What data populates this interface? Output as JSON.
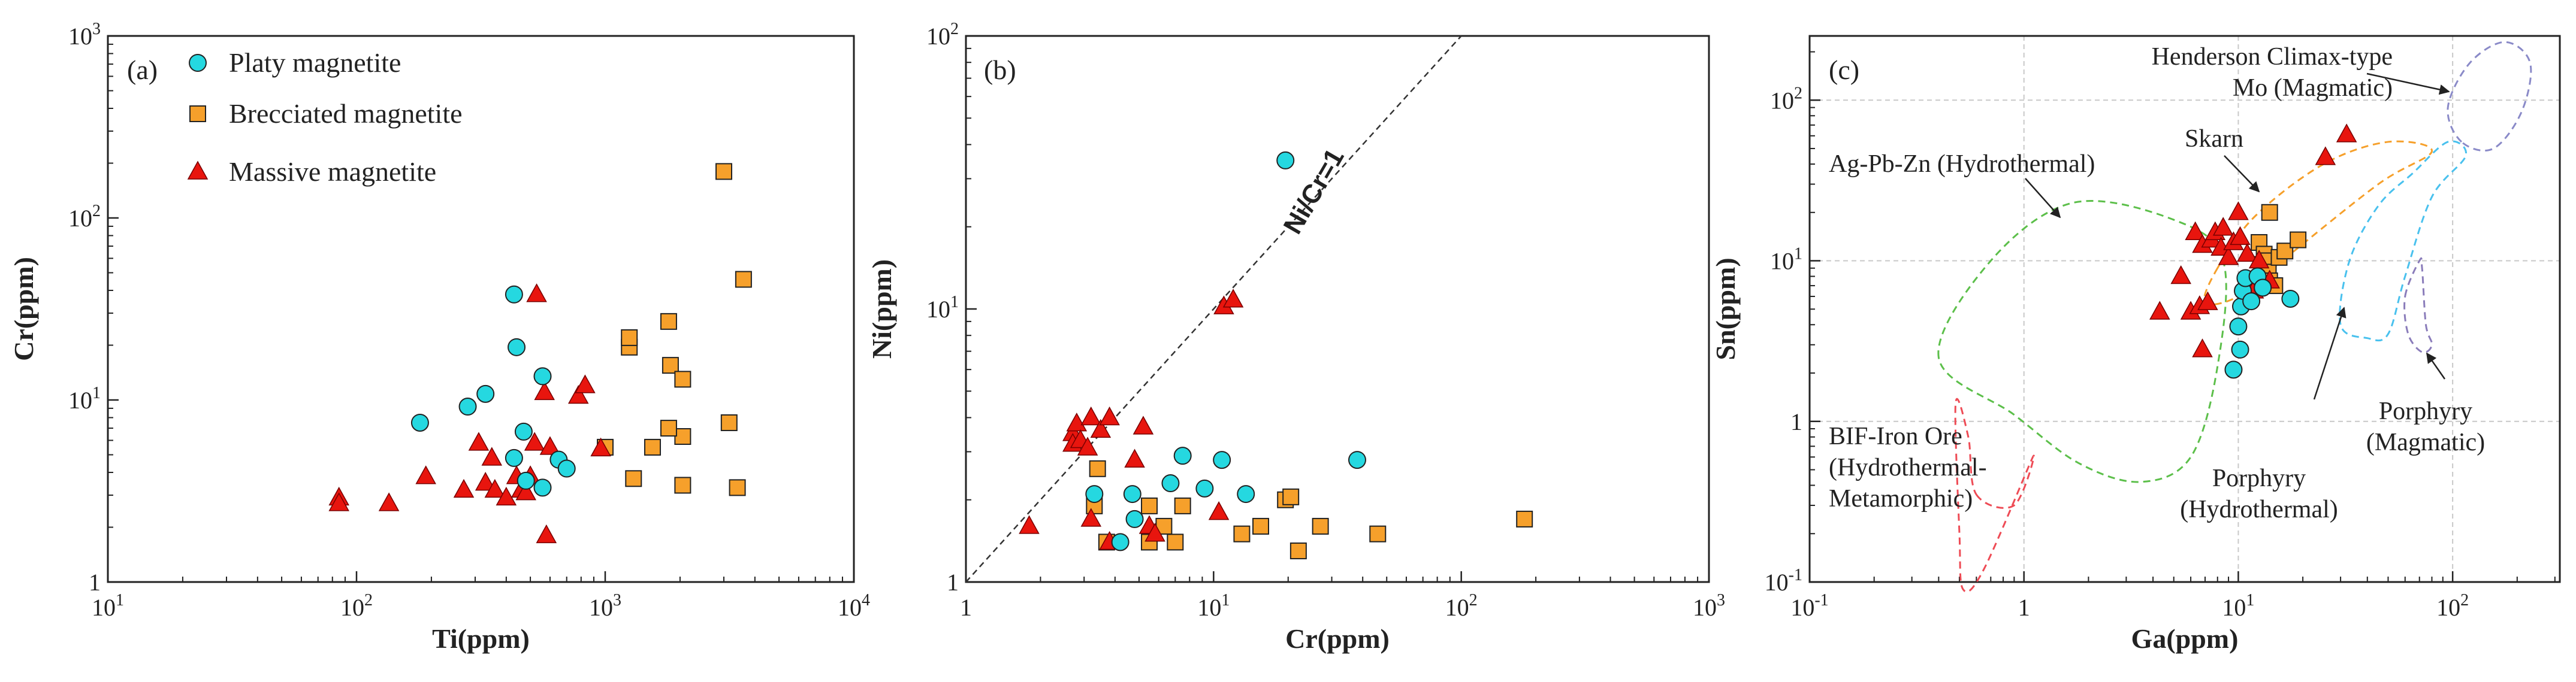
{
  "chart_data": [
    {
      "id": "a",
      "type": "scatter",
      "panel_label": "(a)",
      "xlabel": "Ti(ppm)",
      "ylabel": "Cr(ppm)",
      "xscale": "log",
      "yscale": "log",
      "xlim_exp": [
        1,
        4
      ],
      "ylim_exp": [
        0,
        3
      ],
      "legend_position": "top-left",
      "series": [
        {
          "name": "Platy magnetite",
          "marker": "circle",
          "color": "#25d8e0",
          "points": [
            [
              180,
              7.5
            ],
            [
              280,
              9.2
            ],
            [
              330,
              10.8
            ],
            [
              430,
              38
            ],
            [
              440,
              19.5
            ],
            [
              560,
              13.5
            ],
            [
              430,
              4.8
            ],
            [
              470,
              6.7
            ],
            [
              650,
              4.7
            ],
            [
              700,
              4.2
            ],
            [
              560,
              3.3
            ],
            [
              480,
              3.6
            ]
          ]
        },
        {
          "name": "Brecciated magnetite",
          "marker": "square",
          "color": "#f6a02b",
          "points": [
            [
              3000,
              180
            ],
            [
              3600,
              46
            ],
            [
              1250,
              19.5
            ],
            [
              1250,
              22
            ],
            [
              1800,
              27
            ],
            [
              1830,
              15.5
            ],
            [
              2050,
              13
            ],
            [
              1300,
              3.7
            ],
            [
              1550,
              5.5
            ],
            [
              2050,
              6.3
            ],
            [
              1800,
              7
            ],
            [
              1000,
              5.5
            ],
            [
              3150,
              7.5
            ],
            [
              3400,
              3.3
            ],
            [
              2050,
              3.4
            ]
          ]
        },
        {
          "name": "Massive magnetite",
          "marker": "triangle",
          "color": "#e8150e",
          "points": [
            [
              85,
              2.9
            ],
            [
              85,
              2.7
            ],
            [
              135,
              2.7
            ],
            [
              190,
              3.8
            ],
            [
              270,
              3.2
            ],
            [
              310,
              5.8
            ],
            [
              330,
              3.5
            ],
            [
              350,
              4.8
            ],
            [
              360,
              3.2
            ],
            [
              400,
              2.9
            ],
            [
              440,
              3.8
            ],
            [
              460,
              3.2
            ],
            [
              480,
              3.1
            ],
            [
              500,
              3.8
            ],
            [
              520,
              5.8
            ],
            [
              530,
              38
            ],
            [
              570,
              11
            ],
            [
              580,
              1.8
            ],
            [
              600,
              5.5
            ],
            [
              780,
              10.5
            ],
            [
              830,
              12
            ],
            [
              960,
              5.4
            ]
          ]
        }
      ]
    },
    {
      "id": "b",
      "type": "scatter",
      "panel_label": "(b)",
      "xlabel": "Cr(ppm)",
      "ylabel": "Ni(ppm)",
      "xscale": "log",
      "yscale": "log",
      "xlim_exp": [
        0,
        3
      ],
      "ylim_exp": [
        0,
        2
      ],
      "reference_line": {
        "label": "Ni/Cr=1",
        "style": "dashed",
        "slope": 1
      },
      "series": [
        {
          "name": "Platy magnetite",
          "marker": "circle",
          "color": "#25d8e0",
          "points": [
            [
              19.5,
              35
            ],
            [
              38,
              2.8
            ],
            [
              7.5,
              2.9
            ],
            [
              10.8,
              2.8
            ],
            [
              13.5,
              2.1
            ],
            [
              3.3,
              2.1
            ],
            [
              4.7,
              2.1
            ],
            [
              6.7,
              2.3
            ],
            [
              9.2,
              2.2
            ],
            [
              4.2,
              1.4
            ],
            [
              4.8,
              1.7
            ]
          ]
        },
        {
          "name": "Brecciated magnetite",
          "marker": "square",
          "color": "#f6a02b",
          "points": [
            [
              3.4,
              2.6
            ],
            [
              3.3,
              1.9
            ],
            [
              3.7,
              1.4
            ],
            [
              5.5,
              1.9
            ],
            [
              5.5,
              1.4
            ],
            [
              6.3,
              1.6
            ],
            [
              7.0,
              1.4
            ],
            [
              7.5,
              1.9
            ],
            [
              13.0,
              1.5
            ],
            [
              15.5,
              1.6
            ],
            [
              19.5,
              2.0
            ],
            [
              20.5,
              2.05
            ],
            [
              22.0,
              1.3
            ],
            [
              27.0,
              1.6
            ],
            [
              46.0,
              1.5
            ],
            [
              180.0,
              1.7
            ]
          ]
        },
        {
          "name": "Massive magnetite",
          "marker": "triangle",
          "color": "#e8150e",
          "points": [
            [
              1.8,
              1.6
            ],
            [
              2.7,
              3.5
            ],
            [
              2.7,
              3.2
            ],
            [
              2.8,
              3.8
            ],
            [
              2.9,
              3.3
            ],
            [
              3.1,
              3.1
            ],
            [
              3.2,
              4.0
            ],
            [
              3.5,
              3.6
            ],
            [
              3.8,
              4.0
            ],
            [
              3.2,
              1.7
            ],
            [
              3.8,
              1.4
            ],
            [
              4.8,
              2.8
            ],
            [
              5.2,
              3.7
            ],
            [
              5.5,
              1.6
            ],
            [
              5.8,
              1.5
            ],
            [
              10.5,
              1.8
            ],
            [
              11.0,
              10.2
            ],
            [
              12.0,
              10.8
            ]
          ]
        }
      ]
    },
    {
      "id": "c",
      "type": "scatter",
      "panel_label": "(c)",
      "xlabel": "Ga(ppm)",
      "ylabel": "Sn(ppm)",
      "xscale": "log",
      "yscale": "log",
      "xlim_exp": [
        -1,
        2.5
      ],
      "ylim_exp": [
        -1,
        2.4
      ],
      "grid": true,
      "series": [
        {
          "name": "Platy magnetite",
          "marker": "circle",
          "color": "#25d8e0",
          "points": [
            [
              9.5,
              2.1
            ],
            [
              10.2,
              2.8
            ],
            [
              10.0,
              3.9
            ],
            [
              10.3,
              5.2
            ],
            [
              10.5,
              6.5
            ],
            [
              10.8,
              7.8
            ],
            [
              11.5,
              5.6
            ],
            [
              12.3,
              8.0
            ],
            [
              13.0,
              6.8
            ],
            [
              17.5,
              5.8
            ]
          ]
        },
        {
          "name": "Brecciated magnetite",
          "marker": "square",
          "color": "#f6a02b",
          "points": [
            [
              12.5,
              13
            ],
            [
              13.0,
              9.5
            ],
            [
              13.2,
              11
            ],
            [
              13.5,
              10
            ],
            [
              13.8,
              8.5
            ],
            [
              14.0,
              7.5
            ],
            [
              14.0,
              20
            ],
            [
              14.8,
              7.0
            ],
            [
              15.5,
              10.5
            ],
            [
              16.5,
              11.5
            ],
            [
              19.0,
              13.5
            ]
          ]
        },
        {
          "name": "Massive magnetite",
          "marker": "triangle",
          "color": "#e8150e",
          "points": [
            [
              4.3,
              4.8
            ],
            [
              5.4,
              8.0
            ],
            [
              6.0,
              4.8
            ],
            [
              6.3,
              15.0
            ],
            [
              6.6,
              5.2
            ],
            [
              6.8,
              2.8
            ],
            [
              6.8,
              12.5
            ],
            [
              7.2,
              5.5
            ],
            [
              7.5,
              13.5
            ],
            [
              7.8,
              15.0
            ],
            [
              8.3,
              12.0
            ],
            [
              8.5,
              16.0
            ],
            [
              9.0,
              10.5
            ],
            [
              9.5,
              13.0
            ],
            [
              10.0,
              20.0
            ],
            [
              10.2,
              14.0
            ],
            [
              11.0,
              11.0
            ],
            [
              11.8,
              6.5
            ],
            [
              12.5,
              10.0
            ],
            [
              14.0,
              7.5
            ],
            [
              25.5,
              44.0
            ],
            [
              32.0,
              61.0
            ]
          ]
        }
      ],
      "fields": [
        {
          "name": "Henderson Climax-type Mo (Magmatic)",
          "lines": [
            "Henderson Climax-type",
            "Mo (Magmatic)"
          ],
          "color": "#8a8ac8"
        },
        {
          "name": "Skarn",
          "lines": [
            "Skarn"
          ],
          "color": "#f6a02b"
        },
        {
          "name": "Ag-Pb-Zn (Hydrothermal)",
          "lines": [
            "Ag-Pb-Zn (Hydrothermal)"
          ],
          "color": "#5cbf4a"
        },
        {
          "name": "BIF-Iron Ore (Hydrothermal-Metamorphic)",
          "lines": [
            "BIF-Iron Ore",
            "(Hydrothermal-",
            "Metamorphic)"
          ],
          "color": "#ee4b55"
        },
        {
          "name": "Porphyry (Hydrothermal)",
          "lines": [
            "Porphyry",
            "(Hydrothermal)"
          ],
          "color": "#49c1ee"
        },
        {
          "name": "Porphyry (Magmatic)",
          "lines": [
            "Porphyry",
            "(Magmatic)"
          ],
          "color": "#8a7cba"
        }
      ]
    }
  ]
}
